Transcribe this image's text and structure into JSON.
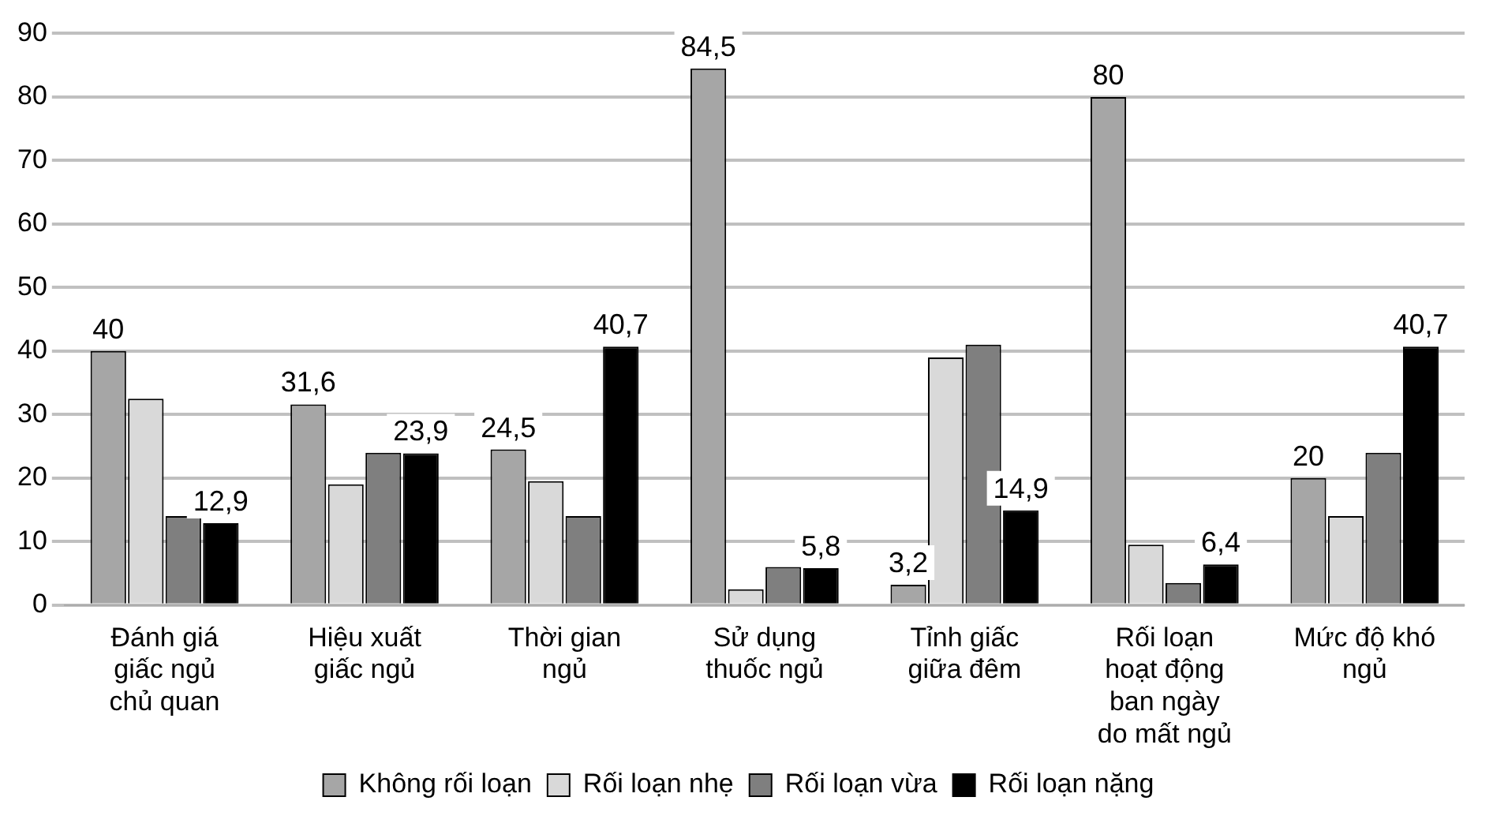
{
  "chart_data": {
    "type": "bar",
    "categories": [
      "Đánh giá giấc ngủ chủ quan",
      "Hiệu xuất giấc ngủ",
      "Thời gian ngủ",
      "Sử dụng thuốc ngủ",
      "Tỉnh giấc giữa đêm",
      "Rối loạn hoạt động ban ngày do mất ngủ",
      "Mức độ khó ngủ"
    ],
    "series": [
      {
        "name": "Không rối loạn",
        "color": "#a6a6a6",
        "values": [
          40,
          31.6,
          24.5,
          84.5,
          3.2,
          80,
          20
        ],
        "value_labels": [
          "40",
          "31,6",
          "24,5",
          "84,5",
          "3,2",
          "80",
          "20"
        ]
      },
      {
        "name": "Rối loạn nhẹ",
        "color": "#d9d9d9",
        "values": [
          32.5,
          19,
          19.5,
          2.5,
          39,
          9.5,
          14
        ],
        "value_labels": [
          null,
          null,
          null,
          null,
          null,
          null,
          null
        ]
      },
      {
        "name": "Rối loạn vừa",
        "color": "#7f7f7f",
        "values": [
          14,
          24,
          14,
          6,
          41,
          3.5,
          24
        ],
        "value_labels": [
          null,
          null,
          null,
          null,
          null,
          null,
          null
        ]
      },
      {
        "name": "Rối loạn nặng",
        "color": "#000000",
        "values": [
          12.9,
          23.9,
          40.7,
          5.8,
          14.9,
          6.4,
          40.7
        ],
        "value_labels": [
          "12,9",
          "23,9",
          "40,7",
          "5,8",
          "14,9",
          "6,4",
          "40,7"
        ]
      }
    ],
    "ylim": [
      0,
      90
    ],
    "yticks": [
      0,
      10,
      20,
      30,
      40,
      50,
      60,
      70,
      80,
      90
    ],
    "grid": "y",
    "legend": "bottom"
  }
}
